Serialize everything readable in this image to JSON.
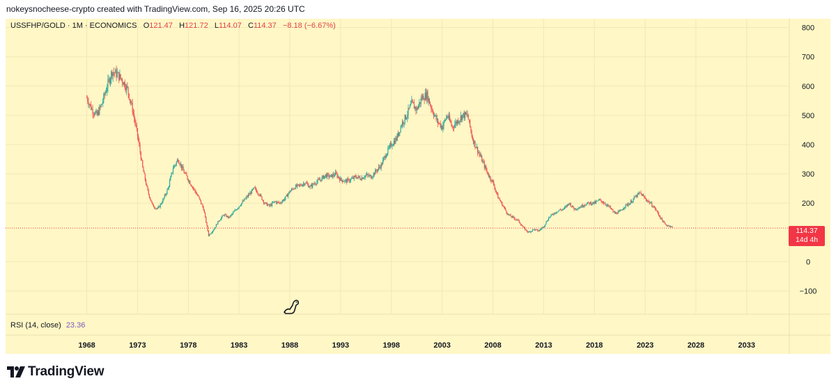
{
  "credit": "nokeysnocheese-crypto created with TradingView.com, Sep 16, 2025 20:26 UTC",
  "legend": {
    "symbol": "USSFHP/GOLD · 1M · ECONOMICS",
    "open_key": "O",
    "open": "121.47",
    "high_key": "H",
    "high": "121.72",
    "low_key": "L",
    "low": "114.07",
    "close_key": "C",
    "close": "114.37",
    "change": "−8.18 (−6.67%)"
  },
  "rsi": {
    "label": "RSI (14, close)",
    "value": "23.36"
  },
  "price_tag": {
    "price": "114.37",
    "countdown": "14d 4h"
  },
  "footer": {
    "brand": "TradingView"
  },
  "colors": {
    "up": "#26a69a",
    "down": "#ef5350",
    "background": "#fff7c5",
    "last_price": "#f23645"
  },
  "chart_data": {
    "type": "candlestick",
    "title": "USSFHP/GOLD · 1M · ECONOMICS",
    "y_ticks": [
      800,
      700,
      600,
      500,
      400,
      300,
      200,
      0,
      -100
    ],
    "x_ticks": [
      "1968",
      "1973",
      "1978",
      "1983",
      "1988",
      "1993",
      "1998",
      "2003",
      "2008",
      "2013",
      "2018",
      "2023",
      "2028",
      "2033"
    ],
    "ylim": [
      -180,
      830
    ],
    "xlim": [
      1960.0,
      2037.2
    ],
    "last_price": 114.37,
    "series": [
      {
        "points": [
          [
            1968.0,
            560
          ],
          [
            1968.5,
            520
          ],
          [
            1969.0,
            500
          ],
          [
            1969.5,
            540
          ],
          [
            1970.0,
            600
          ],
          [
            1970.5,
            650
          ],
          [
            1971.0,
            640
          ],
          [
            1971.5,
            620
          ],
          [
            1972.0,
            590
          ],
          [
            1972.5,
            520
          ],
          [
            1973.0,
            430
          ],
          [
            1973.5,
            320
          ],
          [
            1974.0,
            240
          ],
          [
            1974.5,
            190
          ],
          [
            1975.0,
            180
          ],
          [
            1975.5,
            210
          ],
          [
            1976.0,
            250
          ],
          [
            1976.5,
            320
          ],
          [
            1977.0,
            350
          ],
          [
            1977.5,
            310
          ],
          [
            1978.0,
            280
          ],
          [
            1978.5,
            250
          ],
          [
            1979.0,
            220
          ],
          [
            1979.5,
            180
          ],
          [
            1980.0,
            90
          ],
          [
            1980.5,
            110
          ],
          [
            1981.0,
            140
          ],
          [
            1981.5,
            160
          ],
          [
            1982.0,
            150
          ],
          [
            1982.5,
            170
          ],
          [
            1983.0,
            190
          ],
          [
            1983.5,
            210
          ],
          [
            1984.0,
            230
          ],
          [
            1984.5,
            250
          ],
          [
            1985.0,
            230
          ],
          [
            1985.5,
            200
          ],
          [
            1986.0,
            190
          ],
          [
            1986.5,
            205
          ],
          [
            1987.0,
            200
          ],
          [
            1987.5,
            215
          ],
          [
            1988.0,
            240
          ],
          [
            1988.5,
            255
          ],
          [
            1989.0,
            260
          ],
          [
            1989.5,
            270
          ],
          [
            1990.0,
            255
          ],
          [
            1990.5,
            270
          ],
          [
            1991.0,
            280
          ],
          [
            1991.5,
            295
          ],
          [
            1992.0,
            290
          ],
          [
            1992.5,
            300
          ],
          [
            1993.0,
            280
          ],
          [
            1993.5,
            275
          ],
          [
            1994.0,
            280
          ],
          [
            1994.5,
            290
          ],
          [
            1995.0,
            285
          ],
          [
            1995.5,
            295
          ],
          [
            1996.0,
            290
          ],
          [
            1996.5,
            310
          ],
          [
            1997.0,
            330
          ],
          [
            1997.5,
            370
          ],
          [
            1998.0,
            400
          ],
          [
            1998.5,
            420
          ],
          [
            1999.0,
            470
          ],
          [
            1999.5,
            500
          ],
          [
            2000.0,
            540
          ],
          [
            2000.5,
            520
          ],
          [
            2001.0,
            560
          ],
          [
            2001.5,
            570
          ],
          [
            2002.0,
            520
          ],
          [
            2002.5,
            480
          ],
          [
            2003.0,
            460
          ],
          [
            2003.5,
            500
          ],
          [
            2004.0,
            460
          ],
          [
            2004.5,
            480
          ],
          [
            2005.0,
            500
          ],
          [
            2005.5,
            500
          ],
          [
            2006.0,
            420
          ],
          [
            2006.5,
            380
          ],
          [
            2007.0,
            340
          ],
          [
            2007.5,
            300
          ],
          [
            2008.0,
            270
          ],
          [
            2008.5,
            220
          ],
          [
            2009.0,
            190
          ],
          [
            2009.5,
            160
          ],
          [
            2010.0,
            150
          ],
          [
            2010.5,
            140
          ],
          [
            2011.0,
            115
          ],
          [
            2011.5,
            100
          ],
          [
            2012.0,
            110
          ],
          [
            2012.5,
            105
          ],
          [
            2013.0,
            120
          ],
          [
            2013.5,
            150
          ],
          [
            2014.0,
            165
          ],
          [
            2014.5,
            175
          ],
          [
            2015.0,
            180
          ],
          [
            2015.5,
            200
          ],
          [
            2016.0,
            180
          ],
          [
            2016.5,
            185
          ],
          [
            2017.0,
            195
          ],
          [
            2017.5,
            200
          ],
          [
            2018.0,
            200
          ],
          [
            2018.5,
            210
          ],
          [
            2019.0,
            200
          ],
          [
            2019.5,
            185
          ],
          [
            2020.0,
            165
          ],
          [
            2020.5,
            170
          ],
          [
            2021.0,
            190
          ],
          [
            2021.5,
            200
          ],
          [
            2022.0,
            220
          ],
          [
            2022.5,
            235
          ],
          [
            2023.0,
            215
          ],
          [
            2023.5,
            200
          ],
          [
            2024.0,
            180
          ],
          [
            2024.5,
            150
          ],
          [
            2025.0,
            125
          ],
          [
            2025.5,
            121.47
          ],
          [
            2025.7,
            114.37
          ]
        ]
      }
    ]
  }
}
